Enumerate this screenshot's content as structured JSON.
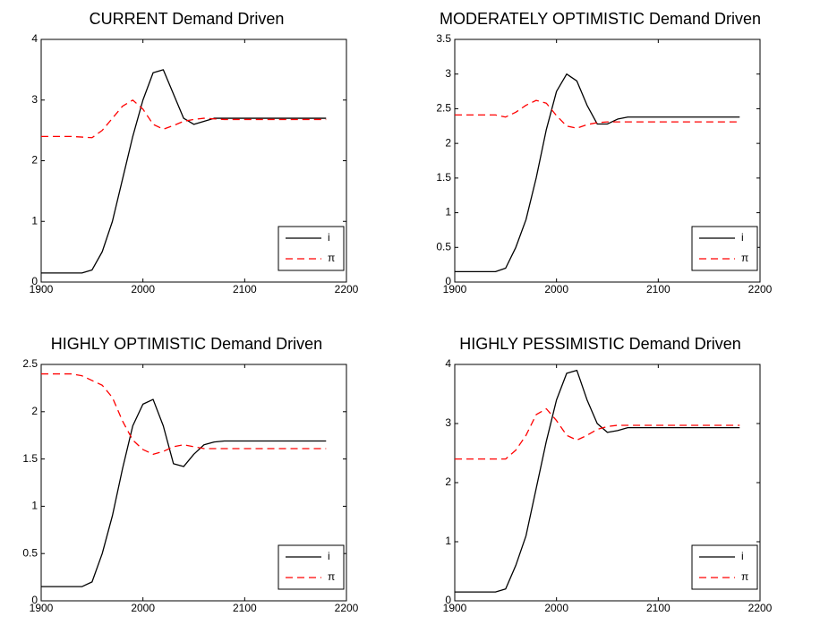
{
  "chart_data": [
    {
      "type": "line",
      "title": "CURRENT Demand Driven",
      "x": [
        1900,
        1910,
        1920,
        1930,
        1940,
        1950,
        1960,
        1970,
        1980,
        1990,
        2000,
        2010,
        2020,
        2030,
        2040,
        2050,
        2060,
        2070,
        2080,
        2090,
        2100,
        2110,
        2120,
        2130,
        2140,
        2150,
        2160,
        2170,
        2180
      ],
      "series": [
        {
          "name": "i",
          "color": "#000000",
          "dash": false,
          "values": [
            0.15,
            0.15,
            0.15,
            0.15,
            0.15,
            0.2,
            0.5,
            1.0,
            1.7,
            2.4,
            3.0,
            3.45,
            3.5,
            3.1,
            2.7,
            2.6,
            2.65,
            2.7,
            2.7,
            2.7,
            2.7,
            2.7,
            2.7,
            2.7,
            2.7,
            2.7,
            2.7,
            2.7,
            2.7
          ]
        },
        {
          "name": "π",
          "color": "#ff0000",
          "dash": true,
          "values": [
            2.4,
            2.4,
            2.4,
            2.4,
            2.39,
            2.38,
            2.5,
            2.7,
            2.9,
            3.0,
            2.85,
            2.6,
            2.52,
            2.58,
            2.65,
            2.68,
            2.7,
            2.69,
            2.68,
            2.68,
            2.68,
            2.68,
            2.68,
            2.68,
            2.68,
            2.68,
            2.68,
            2.68,
            2.68
          ]
        }
      ],
      "xlim": [
        1900,
        2200
      ],
      "xticks": [
        1900,
        2000,
        2100,
        2200
      ],
      "ylim": [
        0,
        4
      ],
      "yticks": [
        0,
        1,
        2,
        3,
        4
      ],
      "legend": "lower right"
    },
    {
      "type": "line",
      "title": "MODERATELY OPTIMISTIC Demand Driven",
      "x": [
        1900,
        1910,
        1920,
        1930,
        1940,
        1950,
        1960,
        1970,
        1980,
        1990,
        2000,
        2010,
        2020,
        2030,
        2040,
        2050,
        2060,
        2070,
        2080,
        2090,
        2100,
        2110,
        2120,
        2130,
        2140,
        2150,
        2160,
        2170,
        2180
      ],
      "series": [
        {
          "name": "i",
          "color": "#000000",
          "dash": false,
          "values": [
            0.15,
            0.15,
            0.15,
            0.15,
            0.15,
            0.2,
            0.5,
            0.9,
            1.5,
            2.2,
            2.75,
            3.0,
            2.9,
            2.55,
            2.28,
            2.28,
            2.35,
            2.38,
            2.38,
            2.38,
            2.38,
            2.38,
            2.38,
            2.38,
            2.38,
            2.38,
            2.38,
            2.38,
            2.38
          ]
        },
        {
          "name": "π",
          "color": "#ff0000",
          "dash": true,
          "values": [
            2.41,
            2.41,
            2.41,
            2.41,
            2.41,
            2.38,
            2.45,
            2.55,
            2.62,
            2.58,
            2.4,
            2.25,
            2.22,
            2.27,
            2.3,
            2.31,
            2.31,
            2.31,
            2.31,
            2.31,
            2.31,
            2.31,
            2.31,
            2.31,
            2.31,
            2.31,
            2.31,
            2.31,
            2.31
          ]
        }
      ],
      "xlim": [
        1900,
        2200
      ],
      "xticks": [
        1900,
        2000,
        2100,
        2200
      ],
      "ylim": [
        0,
        3.5
      ],
      "yticks": [
        0,
        0.5,
        1,
        1.5,
        2,
        2.5,
        3,
        3.5
      ],
      "legend": "lower right"
    },
    {
      "type": "line",
      "title": "HIGHLY OPTIMISTIC Demand Driven",
      "x": [
        1900,
        1910,
        1920,
        1930,
        1940,
        1950,
        1960,
        1970,
        1980,
        1990,
        2000,
        2010,
        2020,
        2030,
        2040,
        2050,
        2060,
        2070,
        2080,
        2090,
        2100,
        2110,
        2120,
        2130,
        2140,
        2150,
        2160,
        2170,
        2180
      ],
      "series": [
        {
          "name": "i",
          "color": "#000000",
          "dash": false,
          "values": [
            0.15,
            0.15,
            0.15,
            0.15,
            0.15,
            0.2,
            0.5,
            0.9,
            1.4,
            1.85,
            2.08,
            2.13,
            1.85,
            1.45,
            1.42,
            1.55,
            1.65,
            1.68,
            1.69,
            1.69,
            1.69,
            1.69,
            1.69,
            1.69,
            1.69,
            1.69,
            1.69,
            1.69,
            1.69
          ]
        },
        {
          "name": "π",
          "color": "#ff0000",
          "dash": true,
          "values": [
            2.4,
            2.4,
            2.4,
            2.4,
            2.38,
            2.33,
            2.28,
            2.15,
            1.9,
            1.7,
            1.6,
            1.55,
            1.58,
            1.63,
            1.65,
            1.63,
            1.61,
            1.61,
            1.61,
            1.61,
            1.61,
            1.61,
            1.61,
            1.61,
            1.61,
            1.61,
            1.61,
            1.61,
            1.61
          ]
        }
      ],
      "xlim": [
        1900,
        2200
      ],
      "xticks": [
        1900,
        2000,
        2100,
        2200
      ],
      "ylim": [
        0,
        2.5
      ],
      "yticks": [
        0,
        0.5,
        1,
        1.5,
        2,
        2.5
      ],
      "legend": "lower right"
    },
    {
      "type": "line",
      "title": "HIGHLY PESSIMISTIC Demand Driven",
      "x": [
        1900,
        1910,
        1920,
        1930,
        1940,
        1950,
        1960,
        1970,
        1980,
        1990,
        2000,
        2010,
        2020,
        2030,
        2040,
        2050,
        2060,
        2070,
        2080,
        2090,
        2100,
        2110,
        2120,
        2130,
        2140,
        2150,
        2160,
        2170,
        2180
      ],
      "series": [
        {
          "name": "i",
          "color": "#000000",
          "dash": false,
          "values": [
            0.15,
            0.15,
            0.15,
            0.15,
            0.15,
            0.2,
            0.6,
            1.1,
            1.9,
            2.7,
            3.4,
            3.85,
            3.9,
            3.4,
            3.0,
            2.85,
            2.88,
            2.93,
            2.93,
            2.93,
            2.93,
            2.93,
            2.93,
            2.93,
            2.93,
            2.93,
            2.93,
            2.93,
            2.93
          ]
        },
        {
          "name": "π",
          "color": "#ff0000",
          "dash": true,
          "values": [
            2.4,
            2.4,
            2.4,
            2.4,
            2.4,
            2.4,
            2.55,
            2.8,
            3.15,
            3.25,
            3.05,
            2.8,
            2.72,
            2.8,
            2.9,
            2.95,
            2.97,
            2.97,
            2.97,
            2.97,
            2.97,
            2.97,
            2.97,
            2.97,
            2.97,
            2.97,
            2.97,
            2.97,
            2.97
          ]
        }
      ],
      "xlim": [
        1900,
        2200
      ],
      "xticks": [
        1900,
        2000,
        2100,
        2200
      ],
      "ylim": [
        0,
        4
      ],
      "yticks": [
        0,
        1,
        2,
        3,
        4
      ],
      "legend": "lower right"
    }
  ]
}
